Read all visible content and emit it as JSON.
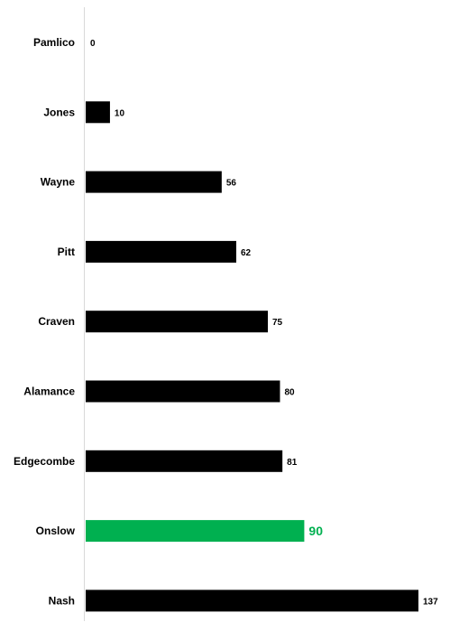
{
  "chart_data": {
    "type": "bar",
    "orientation": "horizontal",
    "title": "",
    "xlabel": "",
    "ylabel": "",
    "categories": [
      "Pamlico",
      "Jones",
      "Wayne",
      "Pitt",
      "Craven",
      "Alamance",
      "Edgecombe",
      "Onslow",
      "Nash"
    ],
    "values": [
      0,
      10,
      56,
      62,
      75,
      80,
      81,
      90,
      137
    ],
    "value_labels": [
      "0",
      "10",
      "56",
      "62",
      "75",
      "80",
      "81",
      "90",
      "137"
    ],
    "highlight": "Onslow",
    "colors": {
      "bar": "#000000",
      "highlight": "#00b050",
      "axis": "#d9d9d9"
    },
    "xlim": [
      0,
      137
    ],
    "grid": false,
    "legend": "none"
  }
}
